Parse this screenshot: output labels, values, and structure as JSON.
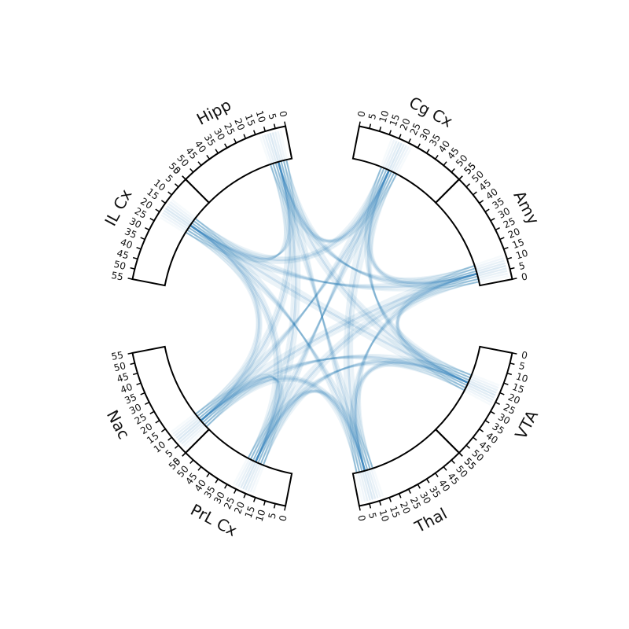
{
  "diagram": {
    "type": "circular-connectivity",
    "colors": {
      "link": "#1f77b4",
      "outline": "#000000"
    },
    "ticks": [
      0,
      5,
      10,
      15,
      20,
      25,
      30,
      35,
      40,
      45,
      50,
      55
    ],
    "tick_labels": [
      "0",
      "5",
      "10",
      "15",
      "20",
      "25",
      "30",
      "35",
      "40",
      "45",
      "50",
      "55"
    ],
    "regions": [
      {
        "id": "hipp",
        "label": "Hipp",
        "focus": 8
      },
      {
        "id": "cg",
        "label": "Cg Cx",
        "focus": 22
      },
      {
        "id": "amy",
        "label": "Amy",
        "focus": 7
      },
      {
        "id": "vta",
        "label": "VTA",
        "focus": 22
      },
      {
        "id": "thal",
        "label": "Thal",
        "focus": 7
      },
      {
        "id": "prl",
        "label": "PrL Cx",
        "focus": 22
      },
      {
        "id": "nac",
        "label": "Nac",
        "focus": 7
      },
      {
        "id": "il",
        "label": "IL Cx",
        "focus": 17
      }
    ],
    "links": [
      [
        "hipp",
        "cg"
      ],
      [
        "hipp",
        "amy"
      ],
      [
        "hipp",
        "vta"
      ],
      [
        "hipp",
        "thal"
      ],
      [
        "hipp",
        "prl"
      ],
      [
        "hipp",
        "nac"
      ],
      [
        "hipp",
        "il"
      ],
      [
        "cg",
        "amy"
      ],
      [
        "cg",
        "vta"
      ],
      [
        "cg",
        "thal"
      ],
      [
        "cg",
        "prl"
      ],
      [
        "cg",
        "nac"
      ],
      [
        "cg",
        "il"
      ],
      [
        "amy",
        "vta"
      ],
      [
        "amy",
        "thal"
      ],
      [
        "amy",
        "prl"
      ],
      [
        "amy",
        "nac"
      ],
      [
        "amy",
        "il"
      ],
      [
        "vta",
        "thal"
      ],
      [
        "vta",
        "prl"
      ],
      [
        "vta",
        "nac"
      ],
      [
        "vta",
        "il"
      ],
      [
        "thal",
        "prl"
      ],
      [
        "thal",
        "nac"
      ],
      [
        "thal",
        "il"
      ],
      [
        "prl",
        "nac"
      ],
      [
        "prl",
        "il"
      ],
      [
        "nac",
        "il"
      ]
    ]
  }
}
